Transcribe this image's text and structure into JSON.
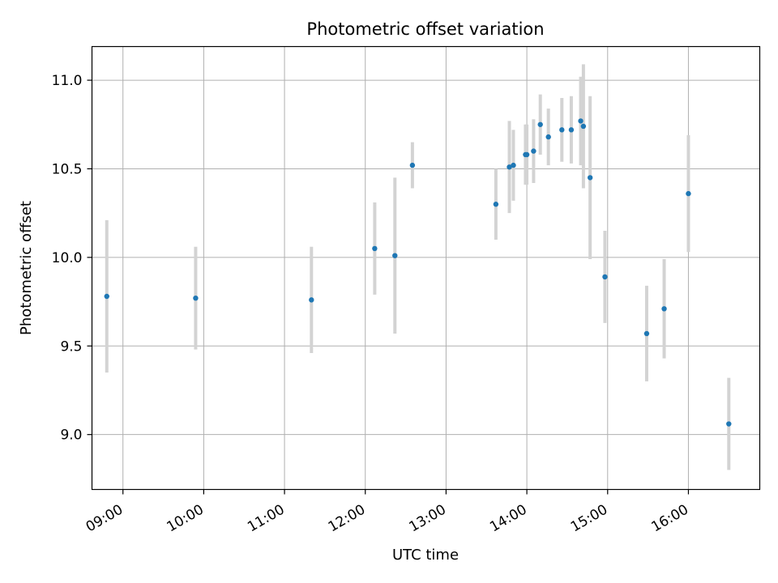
{
  "chart_data": {
    "type": "scatter",
    "title": "Photometric offset variation",
    "xlabel": "UTC time",
    "ylabel": "Photometric offset",
    "grid": true,
    "x_axis_type": "time",
    "xlim": [
      "08:37",
      "16:53"
    ],
    "ylim": [
      8.69,
      11.19
    ],
    "x_ticks": [
      "09:00",
      "10:00",
      "11:00",
      "12:00",
      "13:00",
      "14:00",
      "15:00",
      "16:00"
    ],
    "y_ticks": [
      9.0,
      9.5,
      10.0,
      10.5,
      11.0
    ],
    "y_tick_labels": [
      "9.0",
      "9.5",
      "10.0",
      "10.5",
      "11.0"
    ],
    "colors": {
      "marker": "#1f77b4",
      "errorbar": "#d3d3d3"
    },
    "points": [
      {
        "time": "08:48",
        "y": 9.78,
        "err": 0.43
      },
      {
        "time": "09:54",
        "y": 9.77,
        "err": 0.29
      },
      {
        "time": "11:20",
        "y": 9.76,
        "err": 0.3
      },
      {
        "time": "12:07",
        "y": 10.05,
        "err": 0.26
      },
      {
        "time": "12:22",
        "y": 10.01,
        "err": 0.44
      },
      {
        "time": "12:35",
        "y": 10.52,
        "err": 0.13
      },
      {
        "time": "13:37",
        "y": 10.3,
        "err": 0.2
      },
      {
        "time": "13:47",
        "y": 10.51,
        "err": 0.26
      },
      {
        "time": "13:50",
        "y": 10.52,
        "err": 0.2
      },
      {
        "time": "13:59",
        "y": 10.58,
        "err": 0.17
      },
      {
        "time": "14:00",
        "y": 10.58,
        "err": 0.17
      },
      {
        "time": "14:05",
        "y": 10.6,
        "err": 0.18
      },
      {
        "time": "14:10",
        "y": 10.75,
        "err": 0.17
      },
      {
        "time": "14:16",
        "y": 10.68,
        "err": 0.16
      },
      {
        "time": "14:26",
        "y": 10.72,
        "err": 0.18
      },
      {
        "time": "14:33",
        "y": 10.72,
        "err": 0.19
      },
      {
        "time": "14:40",
        "y": 10.77,
        "err": 0.25
      },
      {
        "time": "14:42",
        "y": 10.74,
        "err": 0.35
      },
      {
        "time": "14:47",
        "y": 10.45,
        "err": 0.46
      },
      {
        "time": "14:58",
        "y": 9.89,
        "err": 0.26
      },
      {
        "time": "15:29",
        "y": 9.57,
        "err": 0.27
      },
      {
        "time": "15:42",
        "y": 9.71,
        "err": 0.28
      },
      {
        "time": "16:00",
        "y": 10.36,
        "err": 0.33
      },
      {
        "time": "16:30",
        "y": 9.06,
        "err": 0.26
      }
    ]
  }
}
